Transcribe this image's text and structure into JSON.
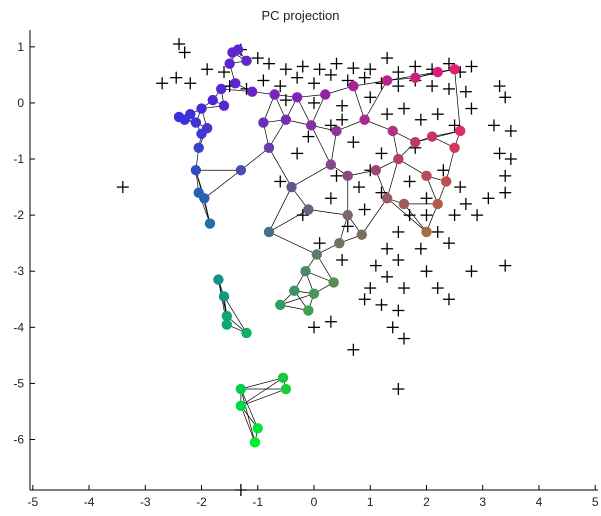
{
  "chart_data": {
    "type": "scatter",
    "title": "PC projection",
    "xlabel": "",
    "ylabel": "",
    "xlim": [
      -5.05,
      5.05
    ],
    "ylim": [
      -6.9,
      1.3
    ],
    "x_ticks": [
      "-5",
      "-4",
      "-3",
      "-2",
      "-1",
      "0",
      "1",
      "2",
      "3",
      "4",
      "5"
    ],
    "y_ticks": [
      "1",
      "0",
      "-1",
      "-2",
      "-3",
      "-4",
      "-5",
      "-6"
    ],
    "x_tick_values": [
      -5,
      -4,
      -3,
      -2,
      -1,
      0,
      1,
      2,
      3,
      4,
      5
    ],
    "y_tick_values": [
      1,
      0,
      -1,
      -2,
      -3,
      -4,
      -5,
      -6
    ],
    "grid": false,
    "colors": {
      "marker": "#000000",
      "edge": "#000000",
      "axis": "#000000"
    },
    "series": [
      {
        "marker": "plus",
        "points": [
          [
            -2.4,
            1.05
          ],
          [
            -2.3,
            0.9
          ],
          [
            -2.7,
            0.35
          ],
          [
            -2.45,
            0.45
          ],
          [
            -2.2,
            0.35
          ],
          [
            -1.9,
            0.6
          ],
          [
            -1.6,
            0.55
          ],
          [
            -1.3,
            0.95
          ],
          [
            -1.0,
            0.8
          ],
          [
            -0.8,
            0.7
          ],
          [
            -0.5,
            0.6
          ],
          [
            -0.2,
            0.65
          ],
          [
            0.1,
            0.6
          ],
          [
            0.4,
            0.7
          ],
          [
            0.7,
            0.62
          ],
          [
            1.0,
            0.6
          ],
          [
            1.3,
            0.8
          ],
          [
            1.5,
            0.55
          ],
          [
            1.8,
            0.65
          ],
          [
            2.1,
            0.6
          ],
          [
            2.4,
            0.7
          ],
          [
            2.6,
            0.55
          ],
          [
            2.8,
            0.65
          ],
          [
            -1.5,
            0.3
          ],
          [
            -1.2,
            0.25
          ],
          [
            -0.9,
            0.4
          ],
          [
            -0.6,
            0.3
          ],
          [
            -0.3,
            0.45
          ],
          [
            0.0,
            0.35
          ],
          [
            0.3,
            0.5
          ],
          [
            0.6,
            0.4
          ],
          [
            0.9,
            0.45
          ],
          [
            1.2,
            0.35
          ],
          [
            1.5,
            0.3
          ],
          [
            1.8,
            0.4
          ],
          [
            2.1,
            0.3
          ],
          [
            2.4,
            0.25
          ],
          [
            2.7,
            0.2
          ],
          [
            -0.5,
            0.05
          ],
          [
            0.0,
            0.0
          ],
          [
            0.5,
            -0.05
          ],
          [
            1.0,
            0.1
          ],
          [
            1.3,
            -0.2
          ],
          [
            1.6,
            -0.1
          ],
          [
            1.9,
            -0.3
          ],
          [
            2.2,
            -0.2
          ],
          [
            2.5,
            -0.4
          ],
          [
            2.8,
            -0.1
          ],
          [
            3.3,
            0.3
          ],
          [
            3.4,
            0.1
          ],
          [
            3.2,
            -0.4
          ],
          [
            3.5,
            -0.5
          ],
          [
            3.3,
            -0.9
          ],
          [
            3.4,
            -1.3
          ],
          [
            3.5,
            -1.0
          ],
          [
            3.1,
            -1.7
          ],
          [
            3.4,
            -1.6
          ],
          [
            2.9,
            -2.0
          ],
          [
            2.5,
            -2.0
          ],
          [
            2.2,
            -2.3
          ],
          [
            2.4,
            -2.5
          ],
          [
            1.9,
            -2.6
          ],
          [
            1.5,
            -2.3
          ],
          [
            1.3,
            -2.6
          ],
          [
            1.1,
            -2.9
          ],
          [
            1.5,
            -2.8
          ],
          [
            1.3,
            -3.1
          ],
          [
            1.0,
            -3.3
          ],
          [
            0.9,
            -3.5
          ],
          [
            1.2,
            -3.6
          ],
          [
            1.5,
            -3.7
          ],
          [
            1.6,
            -3.3
          ],
          [
            2.0,
            -3.0
          ],
          [
            2.2,
            -3.3
          ],
          [
            2.4,
            -3.5
          ],
          [
            2.8,
            -3.0
          ],
          [
            3.4,
            -2.9
          ],
          [
            1.4,
            -4.0
          ],
          [
            1.6,
            -4.2
          ],
          [
            0.7,
            -4.4
          ],
          [
            1.5,
            -5.1
          ],
          [
            0.0,
            -4.0
          ],
          [
            0.3,
            -3.9
          ],
          [
            -3.4,
            -1.5
          ],
          [
            -1.3,
            -6.9
          ],
          [
            1.0,
            -1.2
          ],
          [
            1.2,
            -1.6
          ],
          [
            0.9,
            -1.9
          ],
          [
            0.6,
            -2.2
          ],
          [
            0.3,
            -1.7
          ],
          [
            -0.2,
            -2.0
          ],
          [
            0.1,
            -2.5
          ],
          [
            0.5,
            -2.8
          ],
          [
            1.7,
            -1.4
          ],
          [
            2.0,
            -1.7
          ],
          [
            2.3,
            -1.2
          ],
          [
            2.6,
            -1.5
          ],
          [
            1.8,
            -0.8
          ],
          [
            1.2,
            -0.9
          ],
          [
            0.7,
            -0.7
          ],
          [
            0.3,
            -0.4
          ],
          [
            -0.3,
            -0.9
          ],
          [
            -0.6,
            -1.4
          ],
          [
            -0.1,
            -0.6
          ],
          [
            0.4,
            -1.3
          ],
          [
            0.8,
            -1.5
          ],
          [
            2.7,
            -1.8
          ],
          [
            2.0,
            -2.0
          ],
          [
            1.7,
            -2.0
          ],
          [
            0.5,
            -0.3
          ]
        ]
      },
      {
        "marker": "circle",
        "points": [
          [
            -2.4,
            -0.25
          ],
          [
            -2.3,
            -0.3
          ],
          [
            -2.2,
            -0.2
          ],
          [
            -2.1,
            -0.35
          ],
          [
            -2.0,
            -0.1
          ],
          [
            -1.9,
            -0.45
          ],
          [
            -2.0,
            -0.55
          ],
          [
            -2.05,
            -0.8
          ],
          [
            -2.1,
            -1.2
          ],
          [
            -2.05,
            -1.6
          ],
          [
            -1.95,
            -1.7
          ],
          [
            -1.85,
            -2.15
          ],
          [
            -1.7,
            -3.15
          ],
          [
            -1.6,
            -3.45
          ],
          [
            -1.55,
            -3.8
          ],
          [
            -1.55,
            -3.95
          ],
          [
            -1.3,
            -5.1
          ],
          [
            -1.3,
            -5.4
          ],
          [
            -1.0,
            -5.8
          ],
          [
            -1.05,
            -6.05
          ],
          [
            -0.55,
            -4.9
          ],
          [
            -0.5,
            -5.1
          ],
          [
            -0.6,
            -3.6
          ],
          [
            -0.35,
            -3.35
          ],
          [
            -0.1,
            -3.7
          ],
          [
            0.0,
            -3.4
          ],
          [
            -0.15,
            -3.0
          ],
          [
            0.05,
            -2.7
          ],
          [
            0.35,
            -3.2
          ],
          [
            0.45,
            -2.5
          ],
          [
            0.6,
            -2.0
          ],
          [
            0.85,
            -2.35
          ],
          [
            0.6,
            -1.3
          ],
          [
            1.1,
            -1.2
          ],
          [
            1.3,
            -1.7
          ],
          [
            1.6,
            -1.8
          ],
          [
            2.0,
            -2.3
          ],
          [
            2.2,
            -1.8
          ],
          [
            2.35,
            -1.4
          ],
          [
            2.5,
            -0.8
          ],
          [
            2.6,
            -0.5
          ],
          [
            2.1,
            -0.6
          ],
          [
            1.8,
            -0.7
          ],
          [
            1.4,
            -0.5
          ],
          [
            0.9,
            -0.3
          ],
          [
            0.4,
            -0.5
          ],
          [
            -0.05,
            -0.4
          ],
          [
            -0.5,
            -0.3
          ],
          [
            -0.9,
            -0.35
          ],
          [
            -1.3,
            -1.2
          ],
          [
            -0.8,
            -2.3
          ],
          [
            -0.8,
            -0.8
          ],
          [
            -0.4,
            -1.5
          ],
          [
            -0.1,
            -1.9
          ],
          [
            0.3,
            -1.1
          ],
          [
            -1.5,
            0.7
          ],
          [
            -1.35,
            0.95
          ],
          [
            -1.45,
            0.9
          ],
          [
            -1.2,
            0.75
          ],
          [
            -1.65,
            0.25
          ],
          [
            -1.4,
            0.35
          ],
          [
            -1.1,
            0.2
          ],
          [
            -0.7,
            0.15
          ],
          [
            -0.3,
            0.1
          ],
          [
            0.2,
            0.15
          ],
          [
            0.7,
            0.3
          ],
          [
            1.3,
            0.4
          ],
          [
            1.8,
            0.45
          ],
          [
            2.2,
            0.55
          ],
          [
            2.5,
            0.6
          ],
          [
            -1.2,
            -4.1
          ],
          [
            -1.8,
            0.05
          ],
          [
            -1.6,
            -0.05
          ],
          [
            1.5,
            -1.0
          ],
          [
            2.0,
            -1.3
          ]
        ]
      }
    ]
  }
}
